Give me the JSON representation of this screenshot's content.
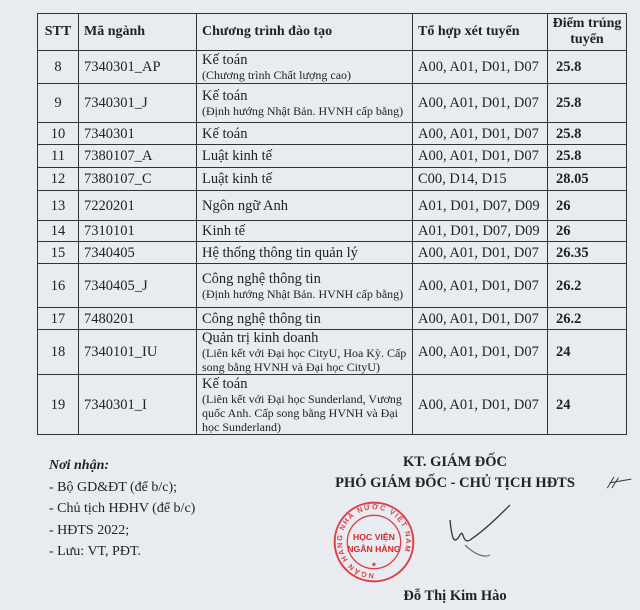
{
  "table": {
    "headers": [
      "STT",
      "Mã ngành",
      "Chương trình đào tạo",
      "Tổ hợp xét tuyển",
      "Điểm trúng tuyển"
    ],
    "rows": [
      {
        "stt": "8",
        "code": "7340301_AP",
        "program": "Kế toán",
        "note": "(Chương trình Chất lượng cao)",
        "combo": "A00, A01, D01, D07",
        "score": "25.8"
      },
      {
        "stt": "9",
        "code": "7340301_J",
        "program": "Kế toán",
        "note": "(Định hướng Nhật Bản. HVNH cấp bằng)",
        "combo": "A00, A01, D01, D07",
        "score": "25.8"
      },
      {
        "stt": "10",
        "code": "7340301",
        "program": "Kế toán",
        "note": "",
        "combo": "A00, A01, D01, D07",
        "score": "25.8"
      },
      {
        "stt": "11",
        "code": "7380107_A",
        "program": "Luật kinh tế",
        "note": "",
        "combo": "A00, A01, D01, D07",
        "score": "25.8"
      },
      {
        "stt": "12",
        "code": "7380107_C",
        "program": "Luật kinh tế",
        "note": "",
        "combo": "C00, D14, D15",
        "score": "28.05"
      },
      {
        "stt": "13",
        "code": "7220201",
        "program": "Ngôn ngữ Anh",
        "note": "",
        "combo": "A01, D01, D07, D09",
        "score": "26"
      },
      {
        "stt": "14",
        "code": "7310101",
        "program": "Kinh tế",
        "note": "",
        "combo": "A01, D01, D07, D09",
        "score": "26"
      },
      {
        "stt": "15",
        "code": "7340405",
        "program": "Hệ thống thông tin quản lý",
        "note": "",
        "combo": "A00, A01, D01, D07",
        "score": "26.35"
      },
      {
        "stt": "16",
        "code": "7340405_J",
        "program": "Công nghệ thông tin",
        "note": "(Định hướng Nhật Bản. HVNH cấp bằng)",
        "combo": "A00, A01, D01, D07",
        "score": "26.2"
      },
      {
        "stt": "17",
        "code": "7480201",
        "program": "Công nghệ thông tin",
        "note": "",
        "combo": "A00, A01, D01, D07",
        "score": "26.2"
      },
      {
        "stt": "18",
        "code": "7340101_IU",
        "program": "Quản trị kinh doanh",
        "note": "(Liên kết với Đại học CityU, Hoa Kỳ. Cấp song bằng HVNH và Đại học CityU)",
        "combo": "A00, A01, D01, D07",
        "score": "24"
      },
      {
        "stt": "19",
        "code": "7340301_I",
        "program": "Kế toán",
        "note": "(Liên kết với Đại học Sunderland, Vương quốc Anh. Cấp song bằng HVNH và Đại học Sunderland)",
        "combo": "A00, A01, D01, D07",
        "score": "24"
      }
    ]
  },
  "recipients": {
    "title": "Nơi nhận:",
    "items": [
      "- Bộ GD&ĐT (để b/c);",
      "- Chủ tịch HĐHV (để b/c)",
      "- HĐTS 2022;",
      "- Lưu: VT, PĐT."
    ]
  },
  "signature": {
    "line1": "KT. GIÁM ĐỐC",
    "line2": "PHÓ GIÁM ĐỐC - CHỦ TỊCH HĐTS",
    "name": "Đỗ Thị Kim Hào"
  },
  "stamp": {
    "ring_text": "NGÂN HÀNG NHÀ NƯỚC VIỆT NAM",
    "center_line1": "HỌC VIỆN",
    "center_line2": "NGÂN HÀNG",
    "color": "#d8262e"
  }
}
